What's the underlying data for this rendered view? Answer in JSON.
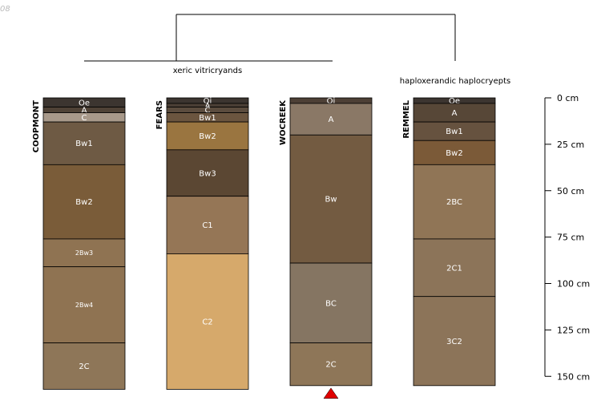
{
  "corner_label": "08",
  "dendrogram": {
    "group_left_label": "xeric vitricryands",
    "group_right_label": "haploxerandic haplocryepts"
  },
  "depth_axis": {
    "ticks": [
      {
        "depth_cm": 0,
        "label": "0 cm"
      },
      {
        "depth_cm": 25,
        "label": "25 cm"
      },
      {
        "depth_cm": 50,
        "label": "50 cm"
      },
      {
        "depth_cm": 75,
        "label": "75 cm"
      },
      {
        "depth_cm": 100,
        "label": "100 cm"
      },
      {
        "depth_cm": 125,
        "label": "125 cm"
      },
      {
        "depth_cm": 150,
        "label": "150 cm"
      }
    ]
  },
  "profiles": [
    {
      "name": "COOPMONT",
      "horizons": [
        {
          "label": "Oe",
          "top": 0,
          "bottom": 5,
          "color": "#3c3530",
          "label_size": 10
        },
        {
          "label": "A",
          "top": 5,
          "bottom": 8,
          "color": "#4f4236",
          "label_size": 10
        },
        {
          "label": "C",
          "top": 8,
          "bottom": 13,
          "color": "#a8998a",
          "label_size": 10
        },
        {
          "label": "Bw1",
          "top": 13,
          "bottom": 36,
          "color": "#6e5a44",
          "label_size": 10
        },
        {
          "label": "Bw2",
          "top": 36,
          "bottom": 76,
          "color": "#7a5c39",
          "label_size": 10
        },
        {
          "label": "2Bw3",
          "top": 76,
          "bottom": 91,
          "color": "#8f7352",
          "label_size": 8
        },
        {
          "label": "2Bw4",
          "top": 91,
          "bottom": 132,
          "color": "#8f7352",
          "label_size": 8
        },
        {
          "label": "2C",
          "top": 132,
          "bottom": 157,
          "color": "#8e7658",
          "label_size": 10
        }
      ]
    },
    {
      "name": "FEARS",
      "horizons": [
        {
          "label": "Oi",
          "top": 0,
          "bottom": 3,
          "color": "#3c3530",
          "label_size": 10
        },
        {
          "label": "A",
          "top": 3,
          "bottom": 5,
          "color": "#4a3f35",
          "label_size": 10
        },
        {
          "label": "C",
          "top": 5,
          "bottom": 8,
          "color": "#5b4c3e",
          "label_size": 10
        },
        {
          "label": "Bw1",
          "top": 8,
          "bottom": 13,
          "color": "#6b553f",
          "label_size": 10
        },
        {
          "label": "Bw2",
          "top": 13,
          "bottom": 28,
          "color": "#9a7540",
          "label_size": 10
        },
        {
          "label": "Bw3",
          "top": 28,
          "bottom": 53,
          "color": "#5b4733",
          "label_size": 10
        },
        {
          "label": "C1",
          "top": 53,
          "bottom": 84,
          "color": "#957656",
          "label_size": 10
        },
        {
          "label": "C2",
          "top": 84,
          "bottom": 157,
          "color": "#d6a96b",
          "label_size": 10
        }
      ]
    },
    {
      "name": "WOCREEK",
      "horizons": [
        {
          "label": "Oi",
          "top": 0,
          "bottom": 3,
          "color": "#4d4036",
          "label_size": 10
        },
        {
          "label": "A",
          "top": 3,
          "bottom": 20,
          "color": "#8a7866",
          "label_size": 10
        },
        {
          "label": "Bw",
          "top": 20,
          "bottom": 89,
          "color": "#735b41",
          "label_size": 10
        },
        {
          "label": "BC",
          "top": 89,
          "bottom": 132,
          "color": "#857562",
          "label_size": 10
        },
        {
          "label": "2C",
          "top": 132,
          "bottom": 155,
          "color": "#8e7658",
          "label_size": 10
        }
      ],
      "truncated": true
    },
    {
      "name": "REMMEL",
      "horizons": [
        {
          "label": "Oe",
          "top": 0,
          "bottom": 3,
          "color": "#3c3530",
          "label_size": 10
        },
        {
          "label": "A",
          "top": 3,
          "bottom": 13,
          "color": "#574737",
          "label_size": 10
        },
        {
          "label": "Bw1",
          "top": 13,
          "bottom": 23,
          "color": "#66523f",
          "label_size": 10
        },
        {
          "label": "Bw2",
          "top": 23,
          "bottom": 36,
          "color": "#7b5a38",
          "label_size": 10
        },
        {
          "label": "2BC",
          "top": 36,
          "bottom": 76,
          "color": "#907556",
          "label_size": 10
        },
        {
          "label": "2C1",
          "top": 76,
          "bottom": 107,
          "color": "#8c7459",
          "label_size": 10
        },
        {
          "label": "3C2",
          "top": 107,
          "bottom": 155,
          "color": "#8c7459",
          "label_size": 10
        }
      ]
    }
  ],
  "colors": {
    "dendrogram_line": "#000000",
    "horizon_border": "#000000",
    "truncation_marker": "#e00000",
    "horizon_label": "#ffffff"
  }
}
